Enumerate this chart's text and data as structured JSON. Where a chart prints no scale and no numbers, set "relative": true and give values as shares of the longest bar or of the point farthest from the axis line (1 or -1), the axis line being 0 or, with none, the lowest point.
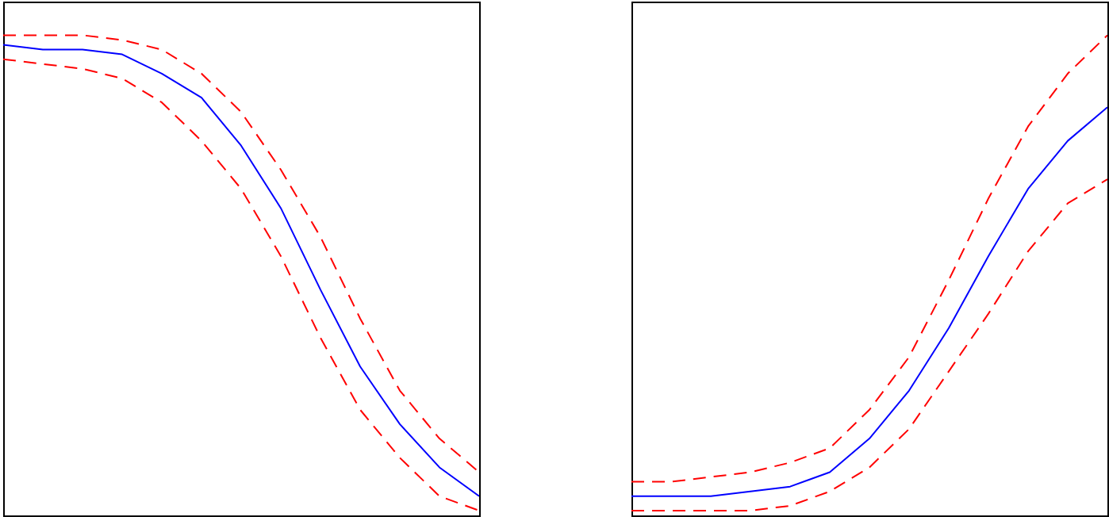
{
  "chart_data": [
    {
      "type": "line",
      "relative": true,
      "categories": [
        null,
        null,
        null,
        null,
        null,
        null,
        null,
        null,
        null,
        null,
        null,
        null,
        null
      ],
      "series": [
        {
          "color": "#ff0000",
          "line_style": "dashed",
          "values": [
            1,
            1,
            1,
            0.99,
            0.97,
            0.92,
            0.84,
            0.72,
            0.58,
            0.41,
            0.26,
            0.16,
            0.09
          ]
        },
        {
          "color": "#0000ff",
          "line_style": "solid",
          "values": [
            0.98,
            0.97,
            0.97,
            0.96,
            0.92,
            0.87,
            0.77,
            0.64,
            0.47,
            0.31,
            0.19,
            0.1,
            0.04
          ]
        },
        {
          "color": "#ff0000",
          "line_style": "dashed",
          "values": [
            0.95,
            0.94,
            0.93,
            0.91,
            0.86,
            0.78,
            0.68,
            0.54,
            0.37,
            0.22,
            0.12,
            0.04,
            0.01
          ]
        }
      ]
    },
    {
      "type": "line",
      "relative": true,
      "categories": [
        null,
        null,
        null,
        null,
        null,
        null,
        null,
        null,
        null,
        null,
        null,
        null,
        null
      ],
      "series": [
        {
          "color": "#ff0000",
          "line_style": "dashed",
          "values": [
            0.07,
            0.07,
            0.08,
            0.09,
            0.11,
            0.14,
            0.22,
            0.33,
            0.49,
            0.66,
            0.81,
            0.92,
            1
          ]
        },
        {
          "color": "#0000ff",
          "line_style": "solid",
          "values": [
            0.04,
            0.04,
            0.04,
            0.05,
            0.06,
            0.09,
            0.16,
            0.26,
            0.39,
            0.54,
            0.68,
            0.78,
            0.85
          ]
        },
        {
          "color": "#ff0000",
          "line_style": "dashed",
          "values": [
            0.01,
            0.01,
            0.01,
            0.01,
            0.02,
            0.05,
            0.1,
            0.18,
            0.3,
            0.42,
            0.55,
            0.65,
            0.7
          ]
        }
      ]
    }
  ]
}
